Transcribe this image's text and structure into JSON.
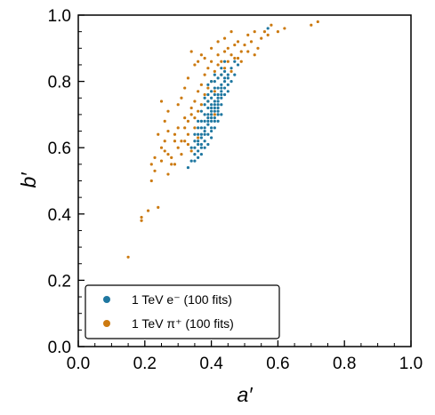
{
  "chart_data": {
    "type": "scatter",
    "title": "",
    "xlabel": "a′",
    "ylabel": "b′",
    "xlim": [
      0.0,
      1.0
    ],
    "ylim": [
      0.0,
      1.0
    ],
    "xticks": [
      "0.0",
      "0.2",
      "0.4",
      "0.6",
      "0.8",
      "1.0"
    ],
    "yticks": [
      "0.0",
      "0.2",
      "0.4",
      "0.6",
      "0.8",
      "1.0"
    ],
    "grid": false,
    "legend_position": "bottom-left",
    "series": [
      {
        "name": "1 TeV e⁻ (100 fits)",
        "color": "#1f77a0",
        "points": [
          [
            0.33,
            0.54
          ],
          [
            0.34,
            0.56
          ],
          [
            0.35,
            0.58
          ],
          [
            0.35,
            0.6
          ],
          [
            0.36,
            0.57
          ],
          [
            0.36,
            0.62
          ],
          [
            0.36,
            0.64
          ],
          [
            0.37,
            0.6
          ],
          [
            0.37,
            0.63
          ],
          [
            0.37,
            0.66
          ],
          [
            0.38,
            0.62
          ],
          [
            0.38,
            0.65
          ],
          [
            0.38,
            0.68
          ],
          [
            0.38,
            0.7
          ],
          [
            0.39,
            0.64
          ],
          [
            0.39,
            0.67
          ],
          [
            0.39,
            0.69
          ],
          [
            0.39,
            0.72
          ],
          [
            0.39,
            0.74
          ],
          [
            0.4,
            0.66
          ],
          [
            0.4,
            0.68
          ],
          [
            0.4,
            0.7
          ],
          [
            0.4,
            0.72
          ],
          [
            0.4,
            0.75
          ],
          [
            0.4,
            0.77
          ],
          [
            0.41,
            0.69
          ],
          [
            0.41,
            0.71
          ],
          [
            0.41,
            0.73
          ],
          [
            0.41,
            0.76
          ],
          [
            0.41,
            0.78
          ],
          [
            0.41,
            0.8
          ],
          [
            0.42,
            0.7
          ],
          [
            0.42,
            0.72
          ],
          [
            0.42,
            0.74
          ],
          [
            0.42,
            0.76
          ],
          [
            0.42,
            0.78
          ],
          [
            0.42,
            0.81
          ],
          [
            0.43,
            0.73
          ],
          [
            0.43,
            0.75
          ],
          [
            0.43,
            0.77
          ],
          [
            0.43,
            0.79
          ],
          [
            0.43,
            0.82
          ],
          [
            0.44,
            0.76
          ],
          [
            0.44,
            0.78
          ],
          [
            0.44,
            0.8
          ],
          [
            0.44,
            0.83
          ],
          [
            0.45,
            0.79
          ],
          [
            0.45,
            0.82
          ],
          [
            0.46,
            0.84
          ],
          [
            0.47,
            0.86
          ],
          [
            0.37,
            0.58
          ],
          [
            0.38,
            0.6
          ],
          [
            0.35,
            0.62
          ],
          [
            0.36,
            0.66
          ],
          [
            0.37,
            0.68
          ],
          [
            0.38,
            0.73
          ],
          [
            0.39,
            0.76
          ],
          [
            0.4,
            0.63
          ],
          [
            0.41,
            0.66
          ],
          [
            0.42,
            0.68
          ],
          [
            0.34,
            0.6
          ],
          [
            0.35,
            0.64
          ],
          [
            0.36,
            0.68
          ],
          [
            0.37,
            0.71
          ],
          [
            0.38,
            0.75
          ],
          [
            0.39,
            0.79
          ],
          [
            0.4,
            0.8
          ],
          [
            0.41,
            0.82
          ],
          [
            0.43,
            0.84
          ],
          [
            0.44,
            0.86
          ],
          [
            0.39,
            0.61
          ],
          [
            0.4,
            0.65
          ],
          [
            0.41,
            0.68
          ],
          [
            0.42,
            0.71
          ],
          [
            0.43,
            0.7
          ],
          [
            0.4,
            0.71
          ],
          [
            0.39,
            0.7
          ],
          [
            0.38,
            0.66
          ],
          [
            0.37,
            0.64
          ],
          [
            0.36,
            0.61
          ],
          [
            0.42,
            0.75
          ],
          [
            0.41,
            0.74
          ],
          [
            0.4,
            0.73
          ],
          [
            0.43,
            0.78
          ],
          [
            0.44,
            0.81
          ],
          [
            0.45,
            0.77
          ],
          [
            0.46,
            0.8
          ],
          [
            0.47,
            0.82
          ],
          [
            0.48,
            0.85
          ],
          [
            0.57,
            0.96
          ],
          [
            0.35,
            0.56
          ],
          [
            0.36,
            0.59
          ],
          [
            0.37,
            0.61
          ],
          [
            0.38,
            0.64
          ],
          [
            0.39,
            0.68
          ],
          [
            0.4,
            0.69
          ],
          [
            0.41,
            0.72
          ],
          [
            0.42,
            0.73
          ],
          [
            0.43,
            0.76
          ],
          [
            0.45,
            0.81
          ]
        ]
      },
      {
        "name": "1 TeV π⁺ (100 fits)",
        "color": "#cc7a10",
        "points": [
          [
            0.15,
            0.27
          ],
          [
            0.19,
            0.38
          ],
          [
            0.19,
            0.39
          ],
          [
            0.21,
            0.41
          ],
          [
            0.24,
            0.42
          ],
          [
            0.22,
            0.5
          ],
          [
            0.23,
            0.53
          ],
          [
            0.22,
            0.55
          ],
          [
            0.23,
            0.57
          ],
          [
            0.25,
            0.56
          ],
          [
            0.26,
            0.59
          ],
          [
            0.27,
            0.58
          ],
          [
            0.25,
            0.6
          ],
          [
            0.26,
            0.62
          ],
          [
            0.27,
            0.65
          ],
          [
            0.28,
            0.55
          ],
          [
            0.28,
            0.57
          ],
          [
            0.29,
            0.62
          ],
          [
            0.29,
            0.64
          ],
          [
            0.3,
            0.6
          ],
          [
            0.3,
            0.66
          ],
          [
            0.31,
            0.58
          ],
          [
            0.31,
            0.62
          ],
          [
            0.32,
            0.66
          ],
          [
            0.32,
            0.69
          ],
          [
            0.33,
            0.61
          ],
          [
            0.33,
            0.64
          ],
          [
            0.33,
            0.68
          ],
          [
            0.34,
            0.7
          ],
          [
            0.34,
            0.72
          ],
          [
            0.35,
            0.66
          ],
          [
            0.35,
            0.69
          ],
          [
            0.35,
            0.74
          ],
          [
            0.36,
            0.71
          ],
          [
            0.36,
            0.77
          ],
          [
            0.37,
            0.73
          ],
          [
            0.37,
            0.79
          ],
          [
            0.38,
            0.76
          ],
          [
            0.38,
            0.82
          ],
          [
            0.39,
            0.78
          ],
          [
            0.39,
            0.84
          ],
          [
            0.4,
            0.8
          ],
          [
            0.4,
            0.86
          ],
          [
            0.41,
            0.77
          ],
          [
            0.41,
            0.83
          ],
          [
            0.42,
            0.85
          ],
          [
            0.42,
            0.88
          ],
          [
            0.43,
            0.82
          ],
          [
            0.43,
            0.86
          ],
          [
            0.44,
            0.84
          ],
          [
            0.44,
            0.89
          ],
          [
            0.45,
            0.86
          ],
          [
            0.45,
            0.9
          ],
          [
            0.46,
            0.83
          ],
          [
            0.46,
            0.88
          ],
          [
            0.47,
            0.91
          ],
          [
            0.48,
            0.87
          ],
          [
            0.48,
            0.92
          ],
          [
            0.49,
            0.89
          ],
          [
            0.5,
            0.91
          ],
          [
            0.51,
            0.94
          ],
          [
            0.52,
            0.92
          ],
          [
            0.53,
            0.95
          ],
          [
            0.54,
            0.9
          ],
          [
            0.55,
            0.93
          ],
          [
            0.56,
            0.95
          ],
          [
            0.57,
            0.94
          ],
          [
            0.58,
            0.97
          ],
          [
            0.6,
            0.95
          ],
          [
            0.62,
            0.96
          ],
          [
            0.7,
            0.97
          ],
          [
            0.72,
            0.98
          ],
          [
            0.34,
            0.89
          ],
          [
            0.35,
            0.85
          ],
          [
            0.36,
            0.86
          ],
          [
            0.37,
            0.88
          ],
          [
            0.38,
            0.87
          ],
          [
            0.33,
            0.81
          ],
          [
            0.32,
            0.78
          ],
          [
            0.31,
            0.75
          ],
          [
            0.3,
            0.73
          ],
          [
            0.27,
            0.71
          ],
          [
            0.25,
            0.74
          ],
          [
            0.24,
            0.64
          ],
          [
            0.27,
            0.52
          ],
          [
            0.29,
            0.55
          ],
          [
            0.26,
            0.68
          ],
          [
            0.4,
            0.9
          ],
          [
            0.42,
            0.92
          ],
          [
            0.44,
            0.93
          ],
          [
            0.46,
            0.95
          ],
          [
            0.47,
            0.87
          ],
          [
            0.49,
            0.86
          ],
          [
            0.51,
            0.89
          ],
          [
            0.53,
            0.88
          ],
          [
            0.39,
            0.74
          ],
          [
            0.41,
            0.7
          ],
          [
            0.36,
            0.63
          ],
          [
            0.34,
            0.59
          ],
          [
            0.32,
            0.62
          ]
        ]
      }
    ]
  }
}
